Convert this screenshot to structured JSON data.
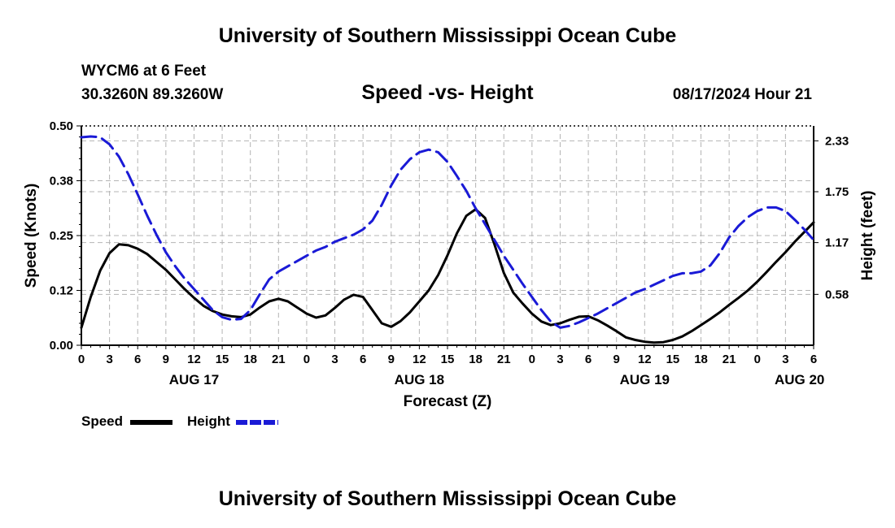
{
  "header": {
    "title": "University of Southern Mississippi Ocean Cube",
    "station": "WYCM6 at 6 Feet",
    "coords": "30.3260N  89.3260W",
    "subtitle": "Speed -vs- Height",
    "datetime": "08/17/2024 Hour 21"
  },
  "footer": {
    "title": "University of Southern Mississippi Ocean Cube"
  },
  "legend": {
    "speed_label": "Speed",
    "height_label": "Height"
  },
  "colors": {
    "speed": "#000000",
    "height": "#1a1ad6",
    "grid": "#b4b4b4"
  },
  "chart_data": {
    "type": "line",
    "title": "Speed -vs- Height",
    "xlabel": "Forecast (Z)",
    "ylabel": "Speed (Knots)",
    "y2label": "Height (feet)",
    "xlim": [
      0,
      78
    ],
    "ylim": [
      0,
      0.5
    ],
    "y2lim": [
      0.0,
      2.5
    ],
    "x_tick_labels": [
      "0",
      "3",
      "6",
      "9",
      "12",
      "15",
      "18",
      "21",
      "0",
      "3",
      "6",
      "9",
      "12",
      "15",
      "18",
      "21",
      "0",
      "3",
      "6",
      "9",
      "12",
      "15",
      "18",
      "21",
      "0",
      "3",
      "6"
    ],
    "date_labels": [
      {
        "label": "AUG 17",
        "x": 12
      },
      {
        "label": "AUG 18",
        "x": 36
      },
      {
        "label": "AUG 19",
        "x": 60
      },
      {
        "label": "AUG 20",
        "x": 76.5
      }
    ],
    "y_tick_labels": [
      "0.00",
      "0.12",
      "0.25",
      "0.38",
      "0.50"
    ],
    "y_tick_values": [
      0,
      0.125,
      0.25,
      0.375,
      0.5
    ],
    "y2_tick_labels": [
      "0.58",
      "1.17",
      "1.75",
      "2.33"
    ],
    "y2_tick_values": [
      0.58,
      1.17,
      1.75,
      2.33
    ],
    "series": [
      {
        "name": "Speed",
        "axis": "left",
        "x": [
          0,
          1,
          2,
          3,
          4,
          5,
          6,
          7,
          8,
          9,
          10,
          11,
          12,
          13,
          14,
          15,
          16,
          17,
          18,
          19,
          20,
          21,
          22,
          23,
          24,
          25,
          26,
          27,
          28,
          29,
          30,
          31,
          32,
          33,
          34,
          35,
          36,
          37,
          38,
          39,
          40,
          41,
          42,
          43,
          44,
          45,
          46,
          47,
          48,
          49,
          50,
          51,
          52,
          53,
          54,
          55,
          56,
          57,
          58,
          59,
          60,
          61,
          62,
          63,
          64,
          65,
          66,
          67,
          68,
          69,
          70,
          71,
          72,
          73,
          74,
          75,
          76,
          77,
          78
        ],
        "values": [
          0.04,
          0.11,
          0.17,
          0.21,
          0.23,
          0.228,
          0.22,
          0.208,
          0.19,
          0.172,
          0.15,
          0.128,
          0.108,
          0.09,
          0.078,
          0.07,
          0.066,
          0.064,
          0.07,
          0.086,
          0.1,
          0.106,
          0.1,
          0.086,
          0.072,
          0.063,
          0.068,
          0.085,
          0.104,
          0.115,
          0.11,
          0.08,
          0.05,
          0.042,
          0.055,
          0.075,
          0.1,
          0.125,
          0.16,
          0.205,
          0.255,
          0.295,
          0.31,
          0.29,
          0.23,
          0.165,
          0.12,
          0.095,
          0.072,
          0.054,
          0.046,
          0.05,
          0.058,
          0.065,
          0.066,
          0.057,
          0.045,
          0.032,
          0.018,
          0.012,
          0.008,
          0.006,
          0.007,
          0.012,
          0.02,
          0.032,
          0.046,
          0.06,
          0.075,
          0.092,
          0.108,
          0.125,
          0.145,
          0.167,
          0.19,
          0.212,
          0.236,
          0.258,
          0.28
        ]
      },
      {
        "name": "Height",
        "axis": "right",
        "x": [
          0,
          1,
          2,
          3,
          4,
          5,
          6,
          7,
          8,
          9,
          10,
          11,
          12,
          13,
          14,
          15,
          16,
          17,
          18,
          19,
          20,
          21,
          22,
          23,
          24,
          25,
          26,
          27,
          28,
          29,
          30,
          31,
          32,
          33,
          34,
          35,
          36,
          37,
          38,
          39,
          40,
          41,
          42,
          43,
          44,
          45,
          46,
          47,
          48,
          49,
          50,
          51,
          52,
          53,
          54,
          55,
          56,
          57,
          58,
          59,
          60,
          61,
          62,
          63,
          64,
          65,
          66,
          67,
          68,
          69,
          70,
          71,
          72,
          73,
          74,
          75,
          76,
          77,
          78
        ],
        "values": [
          2.37,
          2.38,
          2.37,
          2.29,
          2.15,
          1.95,
          1.72,
          1.48,
          1.26,
          1.06,
          0.9,
          0.76,
          0.64,
          0.52,
          0.4,
          0.32,
          0.29,
          0.3,
          0.4,
          0.58,
          0.75,
          0.84,
          0.9,
          0.96,
          1.02,
          1.08,
          1.12,
          1.18,
          1.22,
          1.26,
          1.32,
          1.42,
          1.6,
          1.82,
          2.0,
          2.12,
          2.2,
          2.23,
          2.2,
          2.09,
          1.93,
          1.76,
          1.56,
          1.38,
          1.2,
          1.02,
          0.86,
          0.7,
          0.55,
          0.4,
          0.27,
          0.2,
          0.22,
          0.26,
          0.31,
          0.36,
          0.42,
          0.48,
          0.54,
          0.6,
          0.64,
          0.69,
          0.74,
          0.79,
          0.82,
          0.82,
          0.84,
          0.91,
          1.05,
          1.23,
          1.36,
          1.46,
          1.53,
          1.57,
          1.57,
          1.53,
          1.43,
          1.32,
          1.2
        ]
      }
    ]
  }
}
